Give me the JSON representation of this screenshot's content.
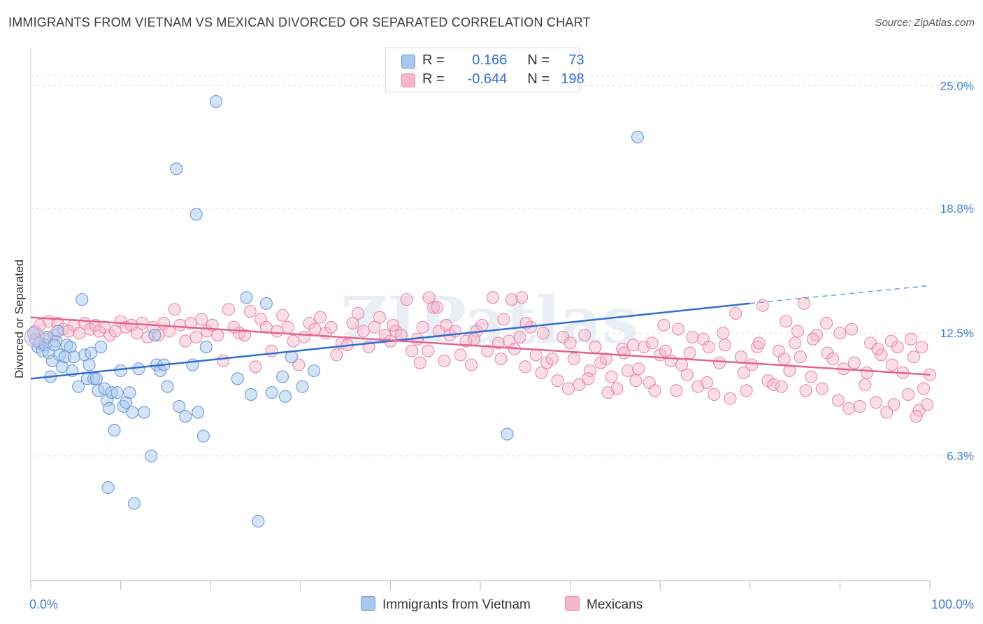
{
  "title": "IMMIGRANTS FROM VIETNAM VS MEXICAN DIVORCED OR SEPARATED CORRELATION CHART",
  "source": "Source: ZipAtlas.com",
  "watermark": "ZIPatlas",
  "legend": {
    "rows": [
      {
        "r_label": "R =",
        "r_value": "0.166",
        "n_label": "N =",
        "n_value": "73"
      },
      {
        "r_label": "R =",
        "r_value": "-0.644",
        "n_label": "N =",
        "n_value": "198"
      }
    ]
  },
  "bottom_legend": [
    "Immigrants from Vietnam",
    "Mexicans"
  ],
  "colors": {
    "blue_fill": "#aac8ee",
    "blue_stroke": "#6d9bd8",
    "blue_line": "#2f6fd1",
    "pink_fill": "#f5b5ca",
    "pink_stroke": "#e88aab",
    "pink_line": "#e2638f",
    "axis_text": "#3f7fd8",
    "grid": "#dddddd"
  },
  "chart_data": {
    "type": "scatter",
    "title": "IMMIGRANTS FROM VIETNAM VS MEXICAN DIVORCED OR SEPARATED CORRELATION CHART",
    "xlabel": "",
    "ylabel": "Divorced or Separated",
    "xlim": [
      0,
      100
    ],
    "ylim": [
      0,
      26.5
    ],
    "x_ticks_labels": [
      "0.0%",
      "100.0%"
    ],
    "y_ticks": [
      6.3,
      12.5,
      18.8,
      25.0
    ],
    "y_tick_labels": [
      "6.3%",
      "12.5%",
      "18.8%",
      "25.0%"
    ],
    "grid": true,
    "legend_position": "top-center",
    "series": [
      {
        "name": "Immigrants from Vietnam",
        "color": "#aac8ee",
        "trend": {
          "x": [
            0,
            80
          ],
          "y": [
            10.2,
            14.0
          ],
          "dashed_to": [
            100,
            14.9
          ]
        },
        "points": [
          [
            0.5,
            12.2
          ],
          [
            0.8,
            11.8
          ],
          [
            1.0,
            12.0
          ],
          [
            1.3,
            11.6
          ],
          [
            1.6,
            11.9
          ],
          [
            2.0,
            11.5
          ],
          [
            2.2,
            10.3
          ],
          [
            2.4,
            11.1
          ],
          [
            2.8,
            12.1
          ],
          [
            3.2,
            11.4
          ],
          [
            3.5,
            10.8
          ],
          [
            3.8,
            11.3
          ],
          [
            4.0,
            11.9
          ],
          [
            4.4,
            11.8
          ],
          [
            4.6,
            10.6
          ],
          [
            4.8,
            11.3
          ],
          [
            5.3,
            9.8
          ],
          [
            5.7,
            14.2
          ],
          [
            6.0,
            11.4
          ],
          [
            6.3,
            10.2
          ],
          [
            6.5,
            10.9
          ],
          [
            6.7,
            11.5
          ],
          [
            7.0,
            10.2
          ],
          [
            7.3,
            10.2
          ],
          [
            7.5,
            9.6
          ],
          [
            7.8,
            11.8
          ],
          [
            8.2,
            9.7
          ],
          [
            8.5,
            9.1
          ],
          [
            8.7,
            8.7
          ],
          [
            9.0,
            9.5
          ],
          [
            9.3,
            7.6
          ],
          [
            9.6,
            9.5
          ],
          [
            10.0,
            10.6
          ],
          [
            10.3,
            8.8
          ],
          [
            10.6,
            9.0
          ],
          [
            11.0,
            9.5
          ],
          [
            11.3,
            8.5
          ],
          [
            12.0,
            10.7
          ],
          [
            12.6,
            8.5
          ],
          [
            13.4,
            6.3
          ],
          [
            13.8,
            12.4
          ],
          [
            14.0,
            10.9
          ],
          [
            14.4,
            10.6
          ],
          [
            14.8,
            10.9
          ],
          [
            15.2,
            9.8
          ],
          [
            16.2,
            20.8
          ],
          [
            16.5,
            8.8
          ],
          [
            17.2,
            8.3
          ],
          [
            18.0,
            10.9
          ],
          [
            18.4,
            18.5
          ],
          [
            18.6,
            8.5
          ],
          [
            19.2,
            7.3
          ],
          [
            19.5,
            11.8
          ],
          [
            20.6,
            24.2
          ],
          [
            23.0,
            10.2
          ],
          [
            24.0,
            14.3
          ],
          [
            24.5,
            9.4
          ],
          [
            25.3,
            3.0
          ],
          [
            26.2,
            14.0
          ],
          [
            26.8,
            9.5
          ],
          [
            28.0,
            10.3
          ],
          [
            28.3,
            9.3
          ],
          [
            29.0,
            11.3
          ],
          [
            30.2,
            9.8
          ],
          [
            31.5,
            10.6
          ],
          [
            8.6,
            4.7
          ],
          [
            11.5,
            3.9
          ],
          [
            53.0,
            7.4
          ],
          [
            67.5,
            22.4
          ],
          [
            0.3,
            12.5
          ],
          [
            1.8,
            12.3
          ],
          [
            2.6,
            11.9
          ],
          [
            3.0,
            12.6
          ]
        ]
      },
      {
        "name": "Mexicans",
        "color": "#f5b5ca",
        "trend": {
          "x": [
            0,
            100
          ],
          "y": [
            13.3,
            10.4
          ]
        },
        "points": [
          [
            0.5,
            12.6
          ],
          [
            1.0,
            12.9
          ],
          [
            1.6,
            12.2
          ],
          [
            2.0,
            13.1
          ],
          [
            2.6,
            12.4
          ],
          [
            3.0,
            13.0
          ],
          [
            3.6,
            12.7
          ],
          [
            4.2,
            12.6
          ],
          [
            4.8,
            12.9
          ],
          [
            5.4,
            12.5
          ],
          [
            6.0,
            13.0
          ],
          [
            6.6,
            12.7
          ],
          [
            7.2,
            12.9
          ],
          [
            7.6,
            12.6
          ],
          [
            8.2,
            12.8
          ],
          [
            8.8,
            12.4
          ],
          [
            9.4,
            12.6
          ],
          [
            10.0,
            13.1
          ],
          [
            10.6,
            12.8
          ],
          [
            11.2,
            12.9
          ],
          [
            11.8,
            12.5
          ],
          [
            12.4,
            13.0
          ],
          [
            13.0,
            12.3
          ],
          [
            13.6,
            12.8
          ],
          [
            14.2,
            12.4
          ],
          [
            14.8,
            13.0
          ],
          [
            15.4,
            12.6
          ],
          [
            16.0,
            13.7
          ],
          [
            16.6,
            12.9
          ],
          [
            17.2,
            12.1
          ],
          [
            17.8,
            13.0
          ],
          [
            18.4,
            12.3
          ],
          [
            19.0,
            13.2
          ],
          [
            19.6,
            12.6
          ],
          [
            20.2,
            12.9
          ],
          [
            20.8,
            12.4
          ],
          [
            21.4,
            11.1
          ],
          [
            22.0,
            13.7
          ],
          [
            22.6,
            12.8
          ],
          [
            23.2,
            12.5
          ],
          [
            23.8,
            12.4
          ],
          [
            24.4,
            13.6
          ],
          [
            25.0,
            10.8
          ],
          [
            25.6,
            13.2
          ],
          [
            26.2,
            12.8
          ],
          [
            26.8,
            11.6
          ],
          [
            27.4,
            12.6
          ],
          [
            28.0,
            13.4
          ],
          [
            28.6,
            12.8
          ],
          [
            29.2,
            12.1
          ],
          [
            29.8,
            10.9
          ],
          [
            30.4,
            12.3
          ],
          [
            31.0,
            13.0
          ],
          [
            31.6,
            12.7
          ],
          [
            32.2,
            13.3
          ],
          [
            32.8,
            12.5
          ],
          [
            33.4,
            12.8
          ],
          [
            34.0,
            11.4
          ],
          [
            34.6,
            12.0
          ],
          [
            35.2,
            11.9
          ],
          [
            35.8,
            13.0
          ],
          [
            36.4,
            13.5
          ],
          [
            37.0,
            12.6
          ],
          [
            37.6,
            11.8
          ],
          [
            38.2,
            12.8
          ],
          [
            38.8,
            13.3
          ],
          [
            39.4,
            12.4
          ],
          [
            40.0,
            12.1
          ],
          [
            40.6,
            12.6
          ],
          [
            41.2,
            12.4
          ],
          [
            41.8,
            14.2
          ],
          [
            42.4,
            11.6
          ],
          [
            43.0,
            12.2
          ],
          [
            43.6,
            12.8
          ],
          [
            44.2,
            11.6
          ],
          [
            44.8,
            13.8
          ],
          [
            45.4,
            12.6
          ],
          [
            46.0,
            11.1
          ],
          [
            46.6,
            12.4
          ],
          [
            47.2,
            12.6
          ],
          [
            47.8,
            11.4
          ],
          [
            48.4,
            12.1
          ],
          [
            49.0,
            10.9
          ],
          [
            49.6,
            12.6
          ],
          [
            50.2,
            12.9
          ],
          [
            50.8,
            11.6
          ],
          [
            51.4,
            14.3
          ],
          [
            52.0,
            12.0
          ],
          [
            52.6,
            13.2
          ],
          [
            53.2,
            12.1
          ],
          [
            53.8,
            11.7
          ],
          [
            54.4,
            12.3
          ],
          [
            55.0,
            10.8
          ],
          [
            55.6,
            12.8
          ],
          [
            56.2,
            11.4
          ],
          [
            56.8,
            10.5
          ],
          [
            57.4,
            11.0
          ],
          [
            58.0,
            11.2
          ],
          [
            58.6,
            10.1
          ],
          [
            59.2,
            12.3
          ],
          [
            59.8,
            9.7
          ],
          [
            60.4,
            11.2
          ],
          [
            61.0,
            9.9
          ],
          [
            61.6,
            12.4
          ],
          [
            62.2,
            10.6
          ],
          [
            62.8,
            11.8
          ],
          [
            63.4,
            11.0
          ],
          [
            64.0,
            11.2
          ],
          [
            64.6,
            10.3
          ],
          [
            65.2,
            9.7
          ],
          [
            65.8,
            11.7
          ],
          [
            66.4,
            10.6
          ],
          [
            67.0,
            11.9
          ],
          [
            67.6,
            10.7
          ],
          [
            68.2,
            11.8
          ],
          [
            68.8,
            10.0
          ],
          [
            69.4,
            9.6
          ],
          [
            70.0,
            11.4
          ],
          [
            70.6,
            11.6
          ],
          [
            71.2,
            11.1
          ],
          [
            71.8,
            9.6
          ],
          [
            72.4,
            10.9
          ],
          [
            73.0,
            10.4
          ],
          [
            73.6,
            12.3
          ],
          [
            74.2,
            9.8
          ],
          [
            74.8,
            12.2
          ],
          [
            75.4,
            11.8
          ],
          [
            76.0,
            9.4
          ],
          [
            76.6,
            11.0
          ],
          [
            77.2,
            11.9
          ],
          [
            77.8,
            9.2
          ],
          [
            78.4,
            13.5
          ],
          [
            79.0,
            11.3
          ],
          [
            79.6,
            9.6
          ],
          [
            80.2,
            10.9
          ],
          [
            80.8,
            11.8
          ],
          [
            81.4,
            13.9
          ],
          [
            82.0,
            10.1
          ],
          [
            82.6,
            9.9
          ],
          [
            83.2,
            11.6
          ],
          [
            83.8,
            11.2
          ],
          [
            84.4,
            10.6
          ],
          [
            85.0,
            12.0
          ],
          [
            85.6,
            11.3
          ],
          [
            86.2,
            9.6
          ],
          [
            86.8,
            10.3
          ],
          [
            87.4,
            12.4
          ],
          [
            88.0,
            9.7
          ],
          [
            88.6,
            11.5
          ],
          [
            89.2,
            11.2
          ],
          [
            89.8,
            9.1
          ],
          [
            90.4,
            10.7
          ],
          [
            91.0,
            8.7
          ],
          [
            91.6,
            11.0
          ],
          [
            92.2,
            8.8
          ],
          [
            92.8,
            9.9
          ],
          [
            93.4,
            12.0
          ],
          [
            94.0,
            9.0
          ],
          [
            94.6,
            11.4
          ],
          [
            95.2,
            8.5
          ],
          [
            95.8,
            10.9
          ],
          [
            96.4,
            11.8
          ],
          [
            97.0,
            10.5
          ],
          [
            97.6,
            9.4
          ],
          [
            98.2,
            11.3
          ],
          [
            98.8,
            8.6
          ],
          [
            99.3,
            9.7
          ],
          [
            99.7,
            8.9
          ],
          [
            100.0,
            10.4
          ],
          [
            44.3,
            14.3
          ],
          [
            45.2,
            13.8
          ],
          [
            53.5,
            14.2
          ],
          [
            54.6,
            14.3
          ],
          [
            62.0,
            10.2
          ],
          [
            66.0,
            11.5
          ],
          [
            72.0,
            12.7
          ],
          [
            84.0,
            13.1
          ],
          [
            86.0,
            14.0
          ],
          [
            88.5,
            13.0
          ],
          [
            91.3,
            12.7
          ],
          [
            95.7,
            12.1
          ],
          [
            97.9,
            12.2
          ],
          [
            99.1,
            11.8
          ],
          [
            94.2,
            11.7
          ],
          [
            98.5,
            8.3
          ],
          [
            96.0,
            8.9
          ],
          [
            93.0,
            10.5
          ],
          [
            90.0,
            12.5
          ],
          [
            87.0,
            12.2
          ],
          [
            85.3,
            12.6
          ],
          [
            83.5,
            9.8
          ],
          [
            81.0,
            12.0
          ],
          [
            79.3,
            10.5
          ],
          [
            77.0,
            12.5
          ],
          [
            75.2,
            10.0
          ],
          [
            73.3,
            11.5
          ],
          [
            70.4,
            12.9
          ],
          [
            69.1,
            12.0
          ],
          [
            67.3,
            10.1
          ],
          [
            64.2,
            9.5
          ],
          [
            60.0,
            12.0
          ],
          [
            57.0,
            12.5
          ],
          [
            55.1,
            13.0
          ],
          [
            52.3,
            11.2
          ],
          [
            49.3,
            12.2
          ],
          [
            46.2,
            12.9
          ],
          [
            43.3,
            11.0
          ],
          [
            40.3,
            12.9
          ]
        ]
      }
    ]
  }
}
